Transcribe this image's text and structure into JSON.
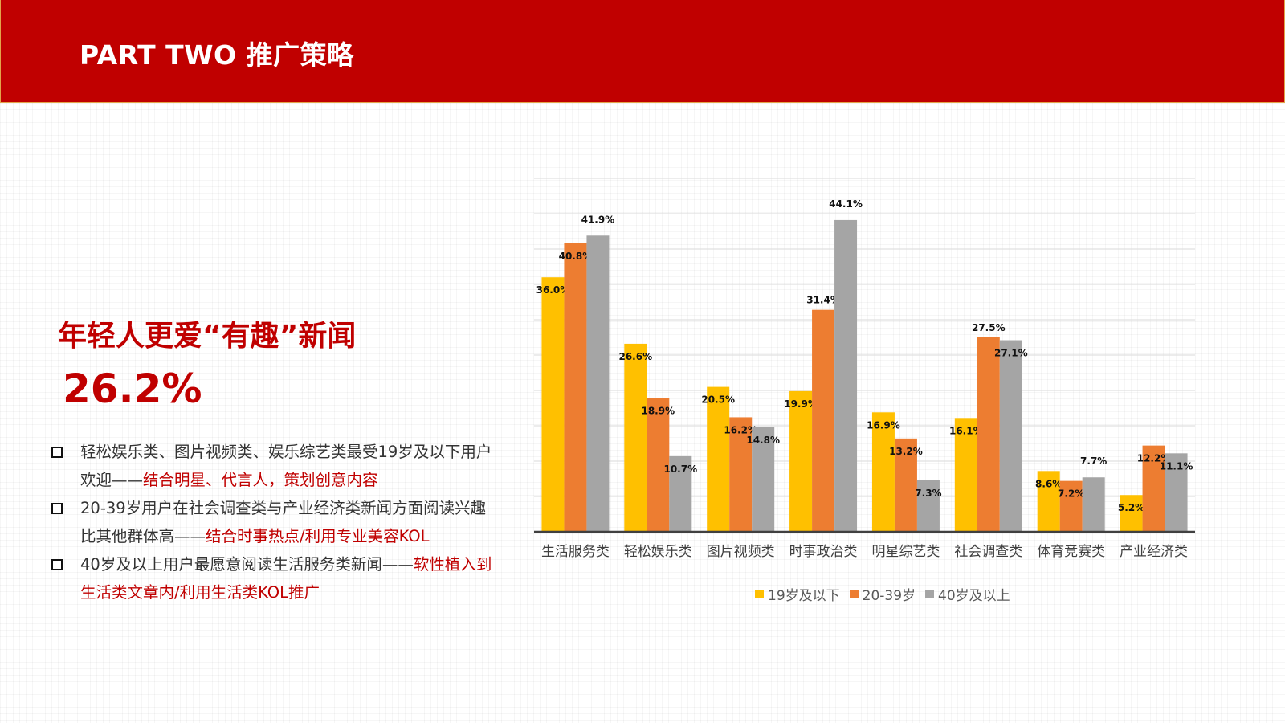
{
  "header": {
    "title": "PART TWO 推广策略"
  },
  "left": {
    "headline": "年轻人更爱“有趣”新闻",
    "big_number": "26.2%",
    "bullets": [
      {
        "text": "轻松娱乐类、图片视频类、娱乐综艺类最受19岁及以下用户欢迎——",
        "highlight": "结合明星、代言人，策划创意内容"
      },
      {
        "text": "20-39岁用户在社会调查类与产业经济类新闻方面阅读兴趣比其他群体高——",
        "highlight": "结合时事热点/利用专业美容KOL"
      },
      {
        "text": "40岁及以上用户最愿意阅读生活服务类新闻——",
        "highlight": "软性植入到生活类文章内/利用生活类KOL推广"
      }
    ]
  },
  "chart_data": {
    "type": "bar",
    "categories": [
      "生活服务类",
      "轻松娱乐类",
      "图片视频类",
      "时事政治类",
      "明星综艺类",
      "社会调查类",
      "体育竞赛类",
      "产业经济类"
    ],
    "series": [
      {
        "name": "19岁及以下",
        "color": "#ffc000",
        "values": [
          36.0,
          26.6,
          20.5,
          19.9,
          16.9,
          16.1,
          8.6,
          5.2
        ],
        "labels": [
          "36.0%",
          "26.6%",
          "20.5%",
          "19.9%",
          "16.9%",
          "16.1%",
          "8.6%",
          "5.2%"
        ]
      },
      {
        "name": "20-39岁",
        "color": "#ed7d31",
        "values": [
          40.8,
          18.9,
          16.2,
          31.4,
          13.2,
          27.5,
          7.2,
          12.2
        ],
        "labels": [
          "40.8%",
          "18.9%",
          "16.2%",
          "31.4%",
          "13.2%",
          "27.5%",
          "7.2%",
          "12.2%"
        ]
      },
      {
        "name": "40岁及以上",
        "color": "#a5a5a5",
        "values": [
          41.9,
          10.7,
          14.8,
          44.1,
          7.3,
          27.1,
          7.7,
          11.1
        ],
        "labels": [
          "41.9%",
          "10.7%",
          "14.8%",
          "44.1%",
          "7.3%",
          "27.1%",
          "7.7%",
          "11.1%"
        ]
      }
    ],
    "ylim": [
      0,
      50
    ],
    "grid": true,
    "legend_position": "bottom"
  }
}
